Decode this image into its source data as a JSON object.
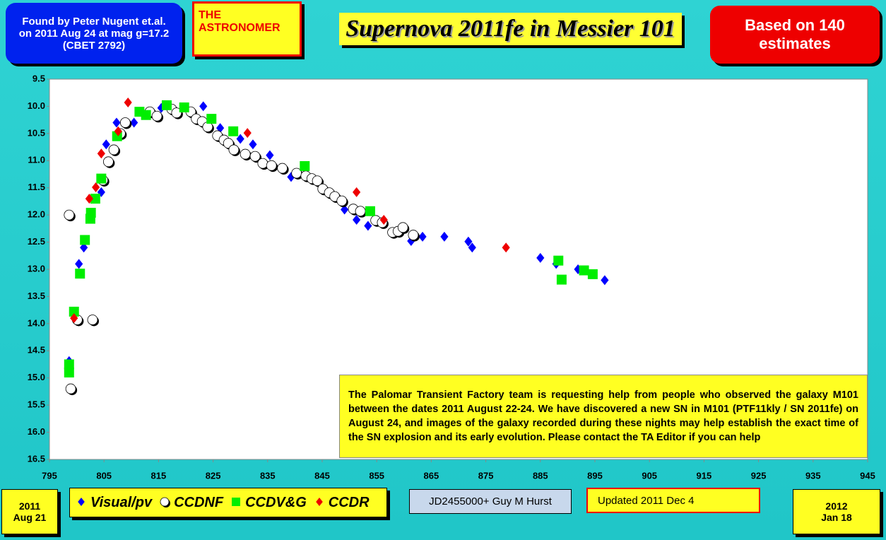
{
  "chart_data": {
    "type": "scatter",
    "title": "Supernova 2011fe in Messier 101",
    "annotations": [
      "Found  by Peter Nugent et.al. on 2011 Aug 24 at mag g=17.2 (CBET 2792)",
      "THE ASTRONOMER",
      "Based on 140 estimates",
      "The Palomar Transient Factory team is requesting help from people who observed the galaxy M101 between the dates 2011 August 22-24. We have discovered a new SN in M101 (PTF11kly / SN 2011fe) on August 24, and images of the galaxy recorded during these nights may help establish the exact time of the SN explosion and its early evolution. Please contact the TA Editor if you can help",
      "2011 Aug 21",
      "2012 Jan 18",
      "JD2455000+ Guy M Hurst",
      "Updated 2011 Dec 4"
    ],
    "xlim": [
      795,
      945
    ],
    "xticks": [
      795,
      805,
      815,
      825,
      835,
      845,
      855,
      865,
      875,
      885,
      895,
      905,
      915,
      925,
      935,
      945
    ],
    "ylim": [
      9.5,
      16.5
    ],
    "y_reversed": true,
    "yticks": [
      9.5,
      {
        "value": 10,
        "label": "10.0"
      },
      10.5,
      {
        "value": 11,
        "label": "11.0"
      },
      11.5,
      {
        "value": 12,
        "label": "12.0"
      },
      12.5,
      {
        "value": 13,
        "label": "13.0"
      },
      13.5,
      {
        "value": 14,
        "label": "14.0"
      },
      14.5,
      {
        "value": 15,
        "label": "15.0"
      },
      15.5,
      {
        "value": 16,
        "label": "16.0"
      },
      16.5
    ],
    "grid": false,
    "series": [
      {
        "name": "Visual/pv",
        "color": "#0000ff",
        "marker": "diamond",
        "x": [
          798.6,
          800.4,
          801.3,
          804.5,
          805.4,
          807.3,
          810.5,
          815.5,
          823.2,
          826.3,
          830,
          832.3,
          835.4,
          839.3,
          849.1,
          851.3,
          853.4,
          861.3,
          863.4,
          867.4,
          871.8,
          872.5,
          885,
          887.9,
          891.9,
          896.8
        ],
        "values": [
          14.69,
          12.9,
          12.6,
          11.58,
          10.7,
          10.3,
          10.3,
          10.03,
          10.0,
          10.4,
          10.6,
          10.7,
          10.9,
          11.3,
          11.9,
          12.09,
          12.2,
          12.48,
          12.4,
          12.4,
          12.49,
          12.6,
          12.79,
          12.9,
          13.0,
          13.2
        ]
      },
      {
        "name": "CCDNF",
        "color": "#ffffff",
        "marker": "circle",
        "x": [
          798.6,
          798.9,
          800.1,
          802.9,
          804.8,
          805.8,
          806.8,
          808,
          808.9,
          813.4,
          814.7,
          817.4,
          818.3,
          820.9,
          821.9,
          823,
          824,
          825.8,
          827,
          827.8,
          828.8,
          830.9,
          832.7,
          834.1,
          835.7,
          837.7,
          840.3,
          842,
          843.1,
          844.1,
          845.1,
          846.3,
          847.3,
          848.6,
          850.7,
          852,
          854.8,
          856,
          857.9,
          858.9,
          859.8,
          861.7
        ],
        "values": [
          12.0,
          15.2,
          13.93,
          13.93,
          11.36,
          11.02,
          10.8,
          10.5,
          10.3,
          10.1,
          10.18,
          10.05,
          10.12,
          10.1,
          10.23,
          10.28,
          10.38,
          10.54,
          10.62,
          10.68,
          10.8,
          10.88,
          10.92,
          11.05,
          11.09,
          11.14,
          11.23,
          11.28,
          11.33,
          11.37,
          11.52,
          11.59,
          11.66,
          11.74,
          11.89,
          11.93,
          12.1,
          12.14,
          12.32,
          12.3,
          12.23,
          12.37
        ]
      },
      {
        "name": "CCDV&G",
        "color": "#00ee00",
        "marker": "square",
        "x": [
          798.6,
          798.6,
          799.5,
          800.6,
          801.5,
          802.5,
          802.6,
          803.4,
          804.5,
          807.4,
          811.5,
          812.7,
          816.5,
          819.7,
          824.7,
          828.7,
          841.8,
          853.8,
          888.3,
          888.9,
          893,
          894.6
        ],
        "values": [
          14.9,
          14.75,
          13.78,
          13.08,
          12.46,
          12.07,
          11.96,
          11.7,
          11.33,
          10.55,
          10.1,
          10.16,
          9.98,
          10.02,
          10.23,
          10.46,
          11.1,
          11.93,
          12.84,
          13.19,
          13.02,
          13.09
        ]
      },
      {
        "name": "CCDR",
        "color": "#ee0000",
        "marker": "diamond",
        "x": [
          799.5,
          802.3,
          803.5,
          804.5,
          807.6,
          809.4,
          831.3,
          851.3,
          856.3,
          878.7
        ],
        "values": [
          13.9,
          11.7,
          11.49,
          10.87,
          10.46,
          9.93,
          10.49,
          11.58,
          12.09,
          12.6
        ]
      }
    ]
  }
}
